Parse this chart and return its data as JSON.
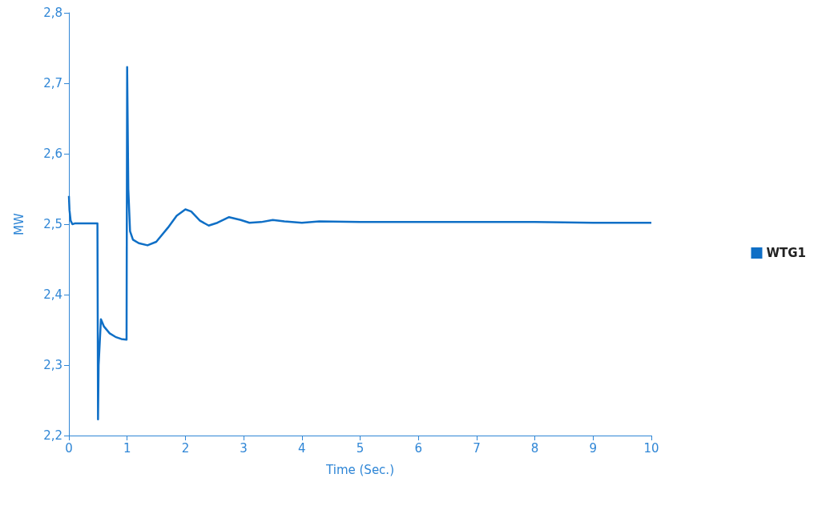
{
  "chart_data": {
    "type": "line",
    "xlabel": "Time (Sec.)",
    "ylabel": "MW",
    "legend": "right",
    "grid": false,
    "marker": "none",
    "line_style": "solid",
    "xlim": [
      0,
      10
    ],
    "xticks": [
      0,
      1,
      2,
      3,
      4,
      5,
      6,
      7,
      8,
      9,
      10
    ],
    "ylim": [
      2.2,
      2.8
    ],
    "yticks": [
      {
        "value": 2.2,
        "label": "2,2"
      },
      {
        "value": 2.3,
        "label": "2,3"
      },
      {
        "value": 2.4,
        "label": "2,4"
      },
      {
        "value": 2.5,
        "label": "2,5"
      },
      {
        "value": 2.6,
        "label": "2,6"
      },
      {
        "value": 2.7,
        "label": "2,7"
      },
      {
        "value": 2.8,
        "label": "2,8"
      }
    ],
    "series": [
      {
        "name": "WTG1",
        "color": "#0f6fc6",
        "x": [
          0,
          0.01,
          0.03,
          0.06,
          0.1,
          0.3,
          0.49,
          0.5,
          0.51,
          0.55,
          0.6,
          0.7,
          0.8,
          0.9,
          0.99,
          1.0,
          1.02,
          1.05,
          1.1,
          1.2,
          1.35,
          1.5,
          1.7,
          1.85,
          2.0,
          2.1,
          2.25,
          2.4,
          2.55,
          2.75,
          2.95,
          3.1,
          3.3,
          3.5,
          3.7,
          4.0,
          4.3,
          5,
          6,
          7,
          8,
          9,
          10
        ],
        "values": [
          2.54,
          2.52,
          2.505,
          2.5,
          2.501,
          2.501,
          2.501,
          2.223,
          2.3,
          2.365,
          2.355,
          2.345,
          2.34,
          2.337,
          2.336,
          2.723,
          2.55,
          2.49,
          2.478,
          2.473,
          2.47,
          2.475,
          2.495,
          2.512,
          2.521,
          2.518,
          2.505,
          2.498,
          2.502,
          2.51,
          2.506,
          2.502,
          2.503,
          2.506,
          2.504,
          2.502,
          2.504,
          2.503,
          2.503,
          2.503,
          2.503,
          2.502,
          2.502
        ]
      }
    ]
  }
}
